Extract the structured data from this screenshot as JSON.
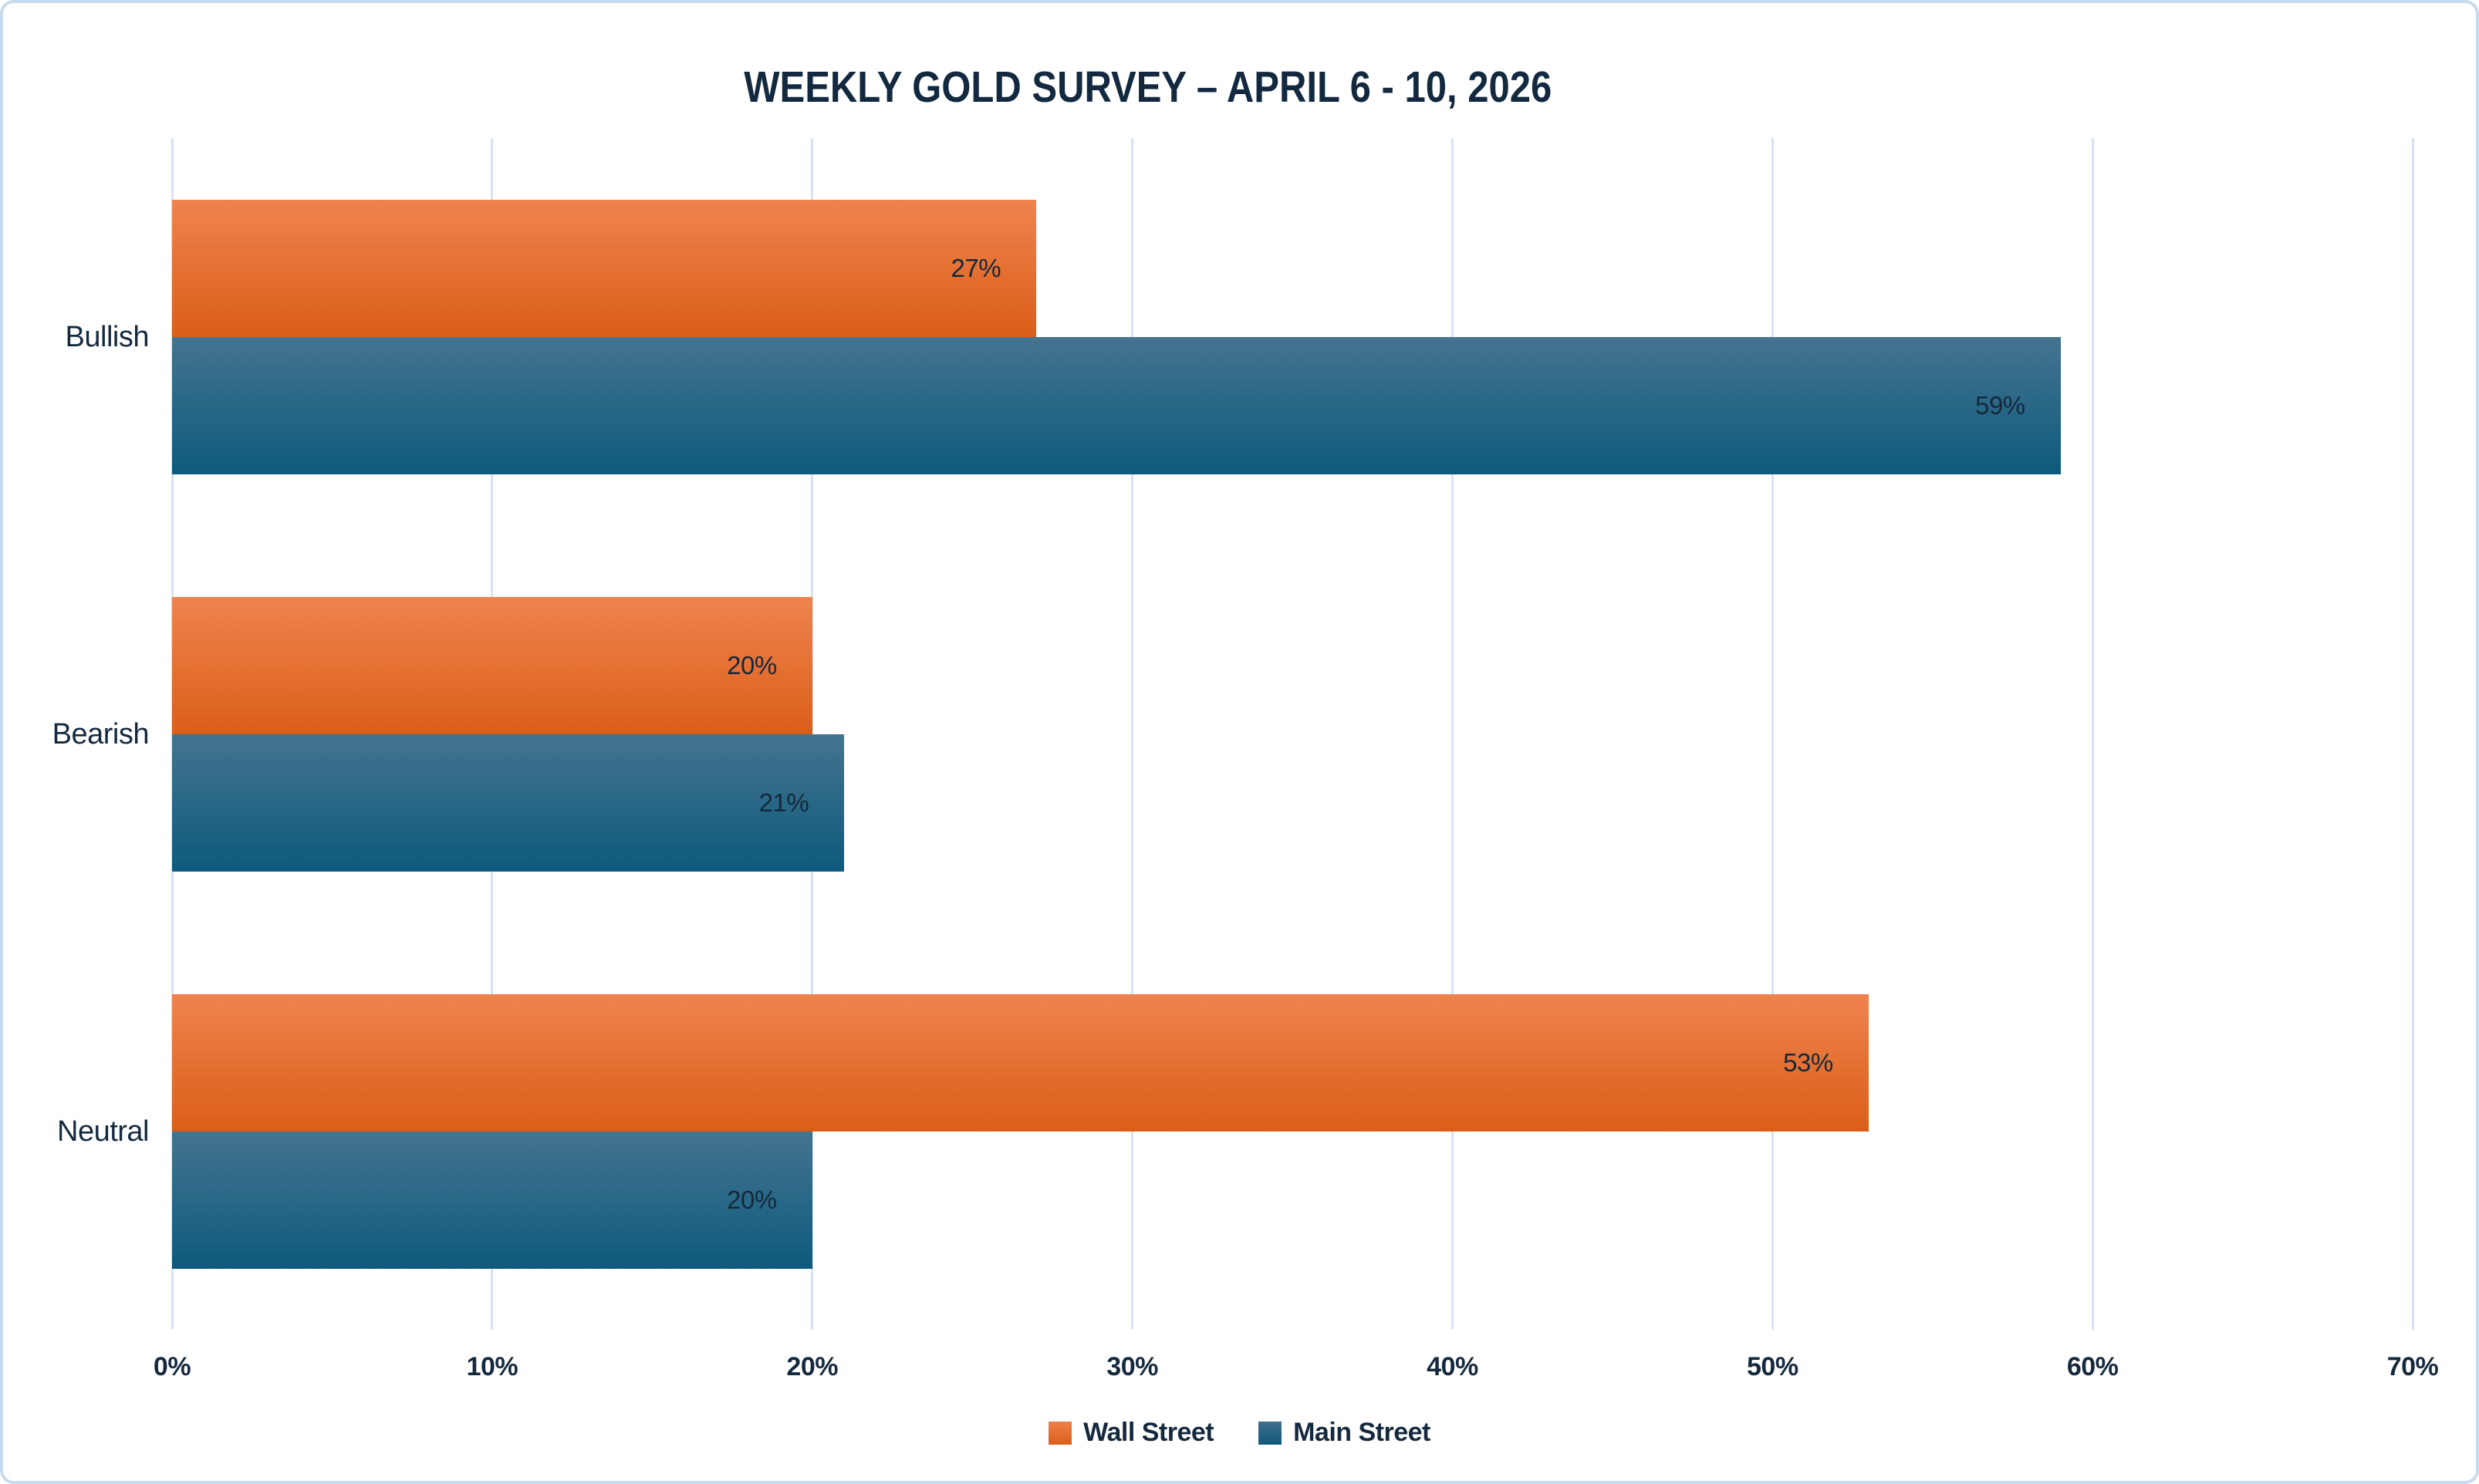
{
  "chart_data": {
    "type": "bar",
    "orientation": "horizontal",
    "title": "WEEKLY GOLD SURVEY – APRIL 6 - 10, 2026",
    "categories": [
      "Bullish",
      "Bearish",
      "Neutral"
    ],
    "series": [
      {
        "name": "Wall Street",
        "values": [
          27,
          20,
          53
        ],
        "labels": [
          "27%",
          "20%",
          "53%"
        ],
        "color_top": "#ef834e",
        "color_bottom": "#db5e18"
      },
      {
        "name": "Main Street",
        "values": [
          59,
          21,
          20
        ],
        "labels": [
          "59%",
          "21%",
          "20%"
        ],
        "color_top": "#44748f",
        "color_bottom": "#0d5a7d"
      }
    ],
    "value_suffix": "%",
    "xlim": [
      0,
      70
    ],
    "x_tick_step": 10,
    "x_ticks": [
      "0%",
      "10%",
      "20%",
      "30%",
      "40%",
      "50%",
      "60%",
      "70%"
    ],
    "grid": "vertical",
    "gridline_color": "#d7e3f1",
    "legend_position": "bottom",
    "title_color": "#12293f",
    "label_color": "#14283b",
    "axis_text_color": "#15293e",
    "slide_border_color": "#c6dcf0",
    "background_color": "#ffffff"
  }
}
